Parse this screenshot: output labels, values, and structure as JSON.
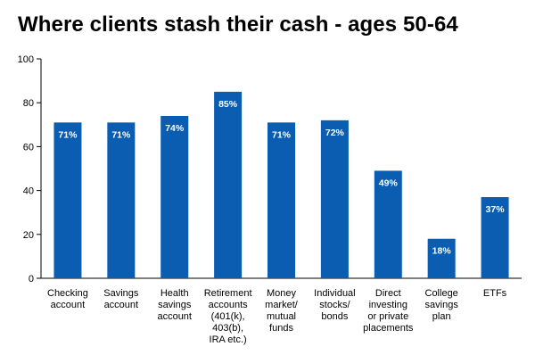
{
  "chart_data": {
    "type": "bar",
    "title": "Where clients stash their cash - ages 50-64",
    "xlabel": "",
    "ylabel": "",
    "ylim": [
      0,
      100
    ],
    "yticks": [
      0,
      20,
      40,
      60,
      80,
      100
    ],
    "grid": false,
    "bar_color": "#0a5db0",
    "categories": [
      "Checking\naccount",
      "Savings\naccount",
      "Health\nsavings\naccount",
      "Retirement\naccounts\n(401(k),\n403(b),\nIRA etc.)",
      "Money\nmarket/\nmutual\nfunds",
      "Individual\nstocks/\nbonds",
      "Direct\ninvesting\nor private\nplacements",
      "College\nsavings\nplan",
      "ETFs"
    ],
    "values": [
      71,
      71,
      74,
      85,
      71,
      72,
      49,
      18,
      37
    ],
    "data_labels": [
      "71%",
      "71%",
      "74%",
      "85%",
      "71%",
      "72%",
      "49%",
      "18%",
      "37%"
    ]
  }
}
